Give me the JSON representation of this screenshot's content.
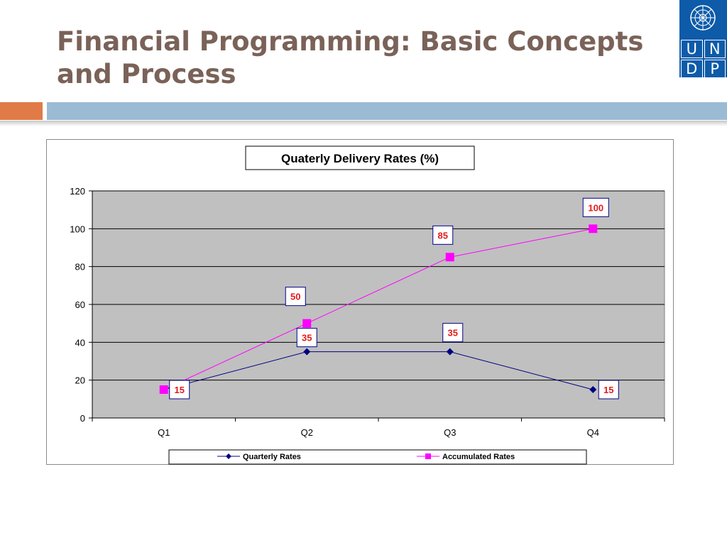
{
  "slide": {
    "title": "Financial Programming: Basic Concepts and Process"
  },
  "logo": {
    "letters": [
      "U",
      "N",
      "D",
      "P"
    ],
    "colors": {
      "background": "#0d5ba9",
      "foreground": "#ffffff"
    }
  },
  "colors": {
    "title": "#7a6258",
    "accent_orange": "#e07b48",
    "accent_blue": "#9bbbd5",
    "plot_background": "#c0c0c0"
  },
  "chart_data": {
    "type": "line",
    "title": "Quaterly Delivery Rates (%)",
    "xlabel": "",
    "ylabel": "",
    "categories": [
      "Q1",
      "Q2",
      "Q3",
      "Q4"
    ],
    "ylim": [
      0,
      120
    ],
    "yticks": [
      0,
      20,
      40,
      60,
      80,
      100,
      120
    ],
    "grid": true,
    "legend": "bottom",
    "series": [
      {
        "name": "Quarterly Rates",
        "values": [
          15,
          35,
          35,
          15
        ],
        "color": "#000080",
        "marker": "diamond"
      },
      {
        "name": "Accumulated Rates",
        "values": [
          15,
          50,
          85,
          100
        ],
        "color": "#ff00ff",
        "marker": "square"
      }
    ]
  }
}
